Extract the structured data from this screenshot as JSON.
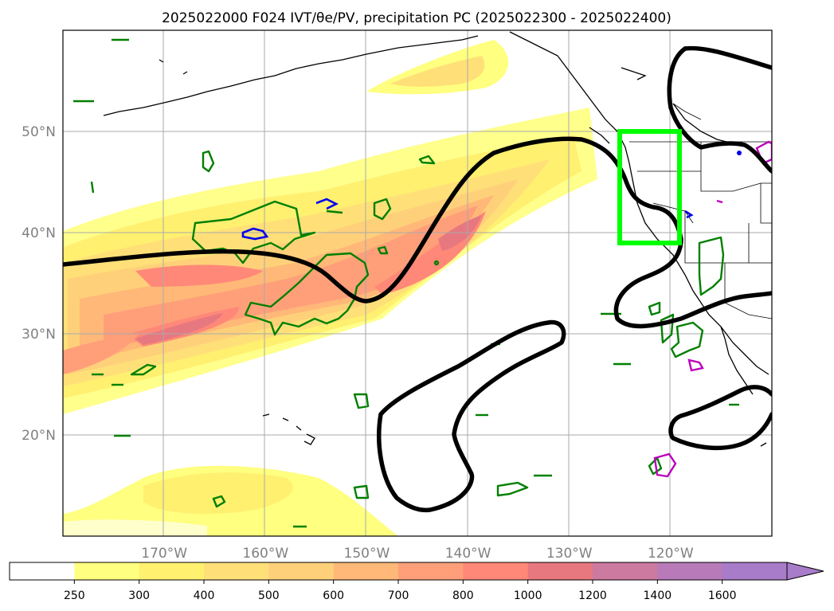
{
  "map": {
    "title": "2025022000 F024 IVT/θe/PV, precipitation PC (2025022300 - 2025022400)",
    "lon_labels": [
      "170°W",
      "160°W",
      "150°W",
      "140°W",
      "130°W",
      "120°W"
    ],
    "lat_labels": [
      "50°N",
      "40°N",
      "30°N",
      "20°N"
    ],
    "lon_values": [
      -170,
      -160,
      -150,
      -140,
      -130,
      -120
    ],
    "lat_values": [
      50,
      40,
      30,
      20
    ],
    "extent": {
      "lon": [
        -180,
        -110
      ],
      "lat": [
        10,
        60
      ]
    },
    "highlight_box": {
      "lon": [
        -125,
        -119
      ],
      "lat": [
        39,
        50
      ],
      "color": "#00ff00"
    }
  },
  "colorbar": {
    "levels": [
      "250",
      "300",
      "400",
      "500",
      "600",
      "700",
      "800",
      "1000",
      "1200",
      "1400",
      "1600"
    ],
    "colors": [
      "#ffffff",
      "#ffff80",
      "#fff070",
      "#ffe078",
      "#ffd07a",
      "#ffb878",
      "#ff9f7a",
      "#ff8878",
      "#e77880",
      "#cc7aa0",
      "#b87ab8",
      "#a87cc8"
    ],
    "extend": "max"
  },
  "legend_colors": {
    "precip_pc": "#008000",
    "pv": "#000000",
    "blue_pc": "#0000ee",
    "magenta_pc": "#bb00bb"
  }
}
